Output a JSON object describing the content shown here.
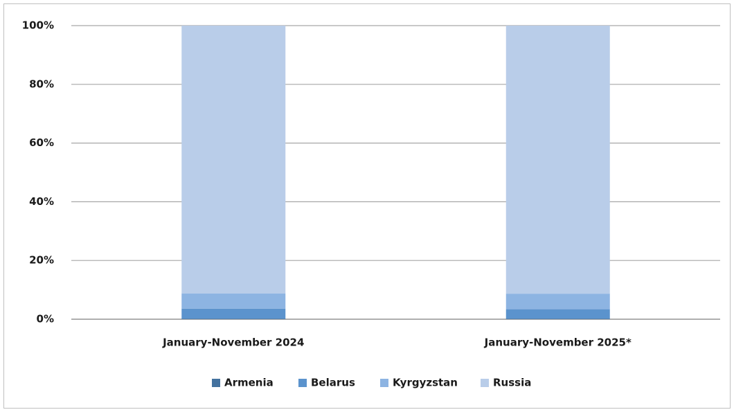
{
  "chart_data": {
    "type": "stacked-bar",
    "categories": [
      "January-November 2024",
      "January-November 2025*"
    ],
    "series": [
      {
        "name": "Armenia",
        "color": "#44729f",
        "values": [
          0.2,
          0.2
        ]
      },
      {
        "name": "Belarus",
        "color": "#5b93cd",
        "values": [
          3.4,
          3.2
        ]
      },
      {
        "name": "Kyrgyzstan",
        "color": "#8db4e2",
        "values": [
          5.2,
          5.3
        ]
      },
      {
        "name": "Russia",
        "color": "#b9cde9",
        "values": [
          91.2,
          91.3
        ]
      }
    ],
    "ylim": [
      0,
      100
    ],
    "yticks": [
      {
        "value": 0,
        "label": "0%"
      },
      {
        "value": 20,
        "label": "20%"
      },
      {
        "value": 40,
        "label": "40%"
      },
      {
        "value": 60,
        "label": "60%"
      },
      {
        "value": 80,
        "label": "80%"
      },
      {
        "value": 100,
        "label": "100%"
      }
    ],
    "grid": true,
    "legend": "bottom"
  }
}
